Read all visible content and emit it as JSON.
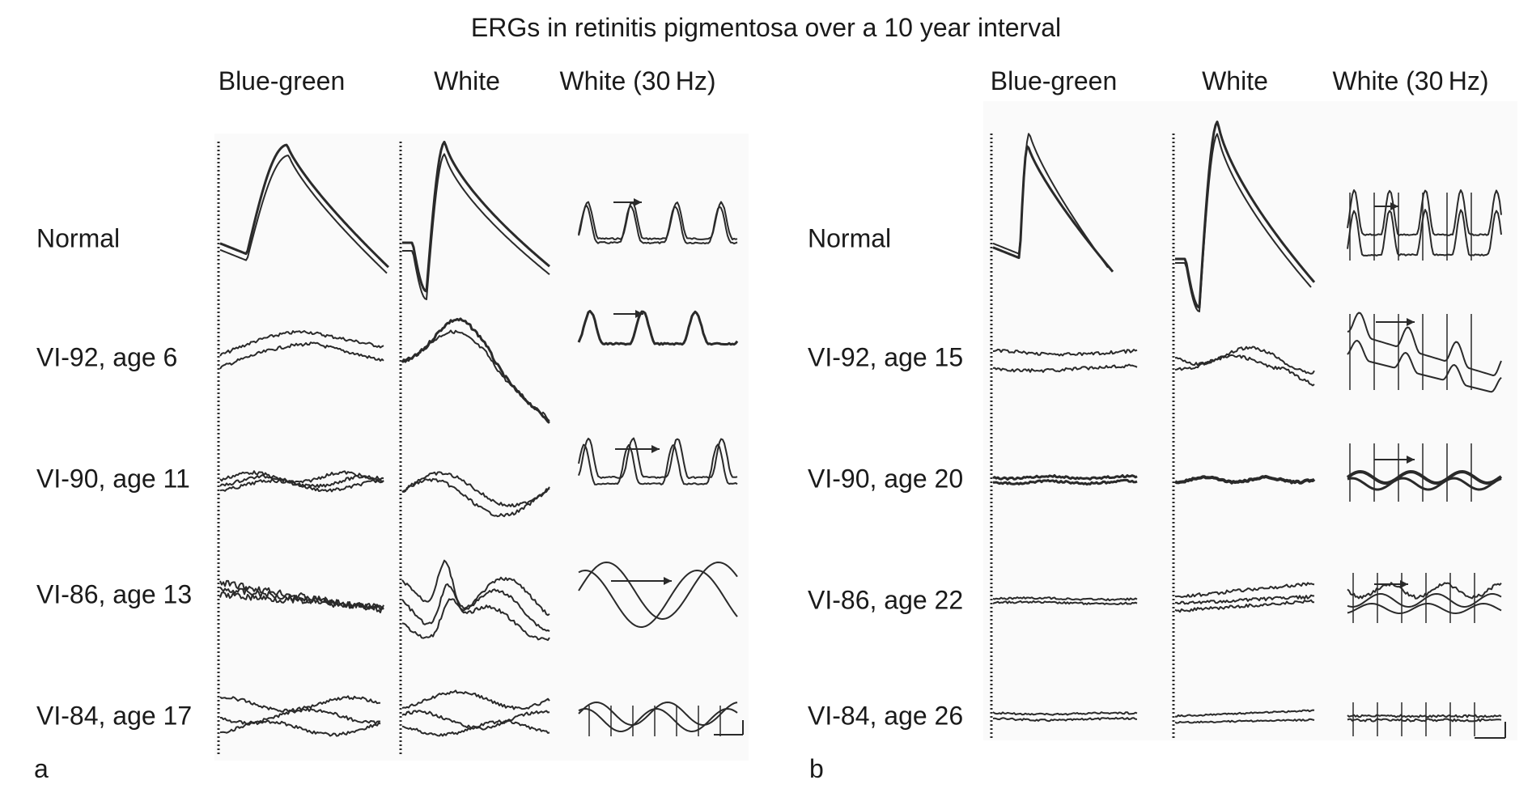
{
  "title": "ERGs in retinitis pigmentosa over a 10 year interval",
  "panels": [
    {
      "letter": "a",
      "columns": [
        "Blue-green",
        "White",
        "White (30 Hz)"
      ],
      "rows": [
        "Normal",
        "VI-92, age 6",
        "VI-90, age 11",
        "VI-86, age 13",
        "VI-84, age 17"
      ]
    },
    {
      "letter": "b",
      "columns": [
        "Blue-green",
        "White",
        "White (30 Hz)"
      ],
      "rows": [
        "Normal",
        "VI-92, age 15",
        "VI-90, age 20",
        "VI-86, age 22",
        "VI-84, age 26"
      ]
    }
  ],
  "colors": {
    "trace": "#2a2a2a",
    "background": "#ffffff",
    "panel_bg": "#fafafa"
  }
}
